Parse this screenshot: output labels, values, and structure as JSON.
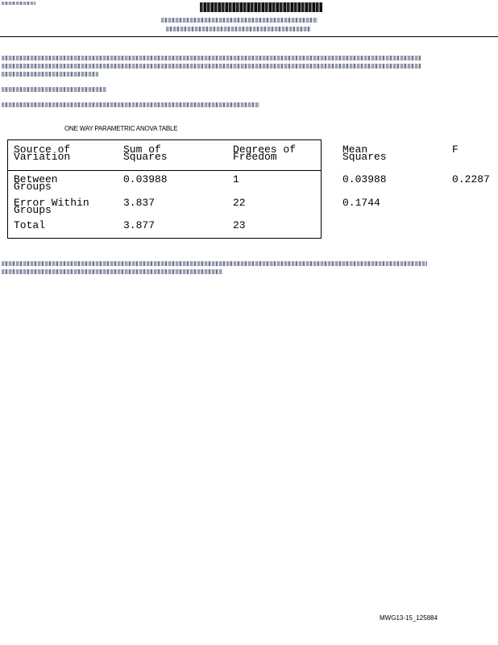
{
  "document": {
    "table_title": "ONE WAY PARAMETRIC ANOVA TABLE",
    "table": {
      "headers": [
        "Source of\nVariation",
        "Sum of\nSquares",
        "Degrees of\nFreedom",
        "Mean\nSquares",
        "F"
      ],
      "rows": [
        [
          "Between\nGroups",
          "0.03988",
          "1",
          "0.03988",
          "0.2287"
        ],
        [
          "Error Within\nGroups",
          "3.837",
          "22",
          "0.1744",
          ""
        ],
        [
          "Total",
          "3.877",
          "23",
          "",
          ""
        ]
      ]
    },
    "footer_code": "MWG13-15_125884"
  }
}
